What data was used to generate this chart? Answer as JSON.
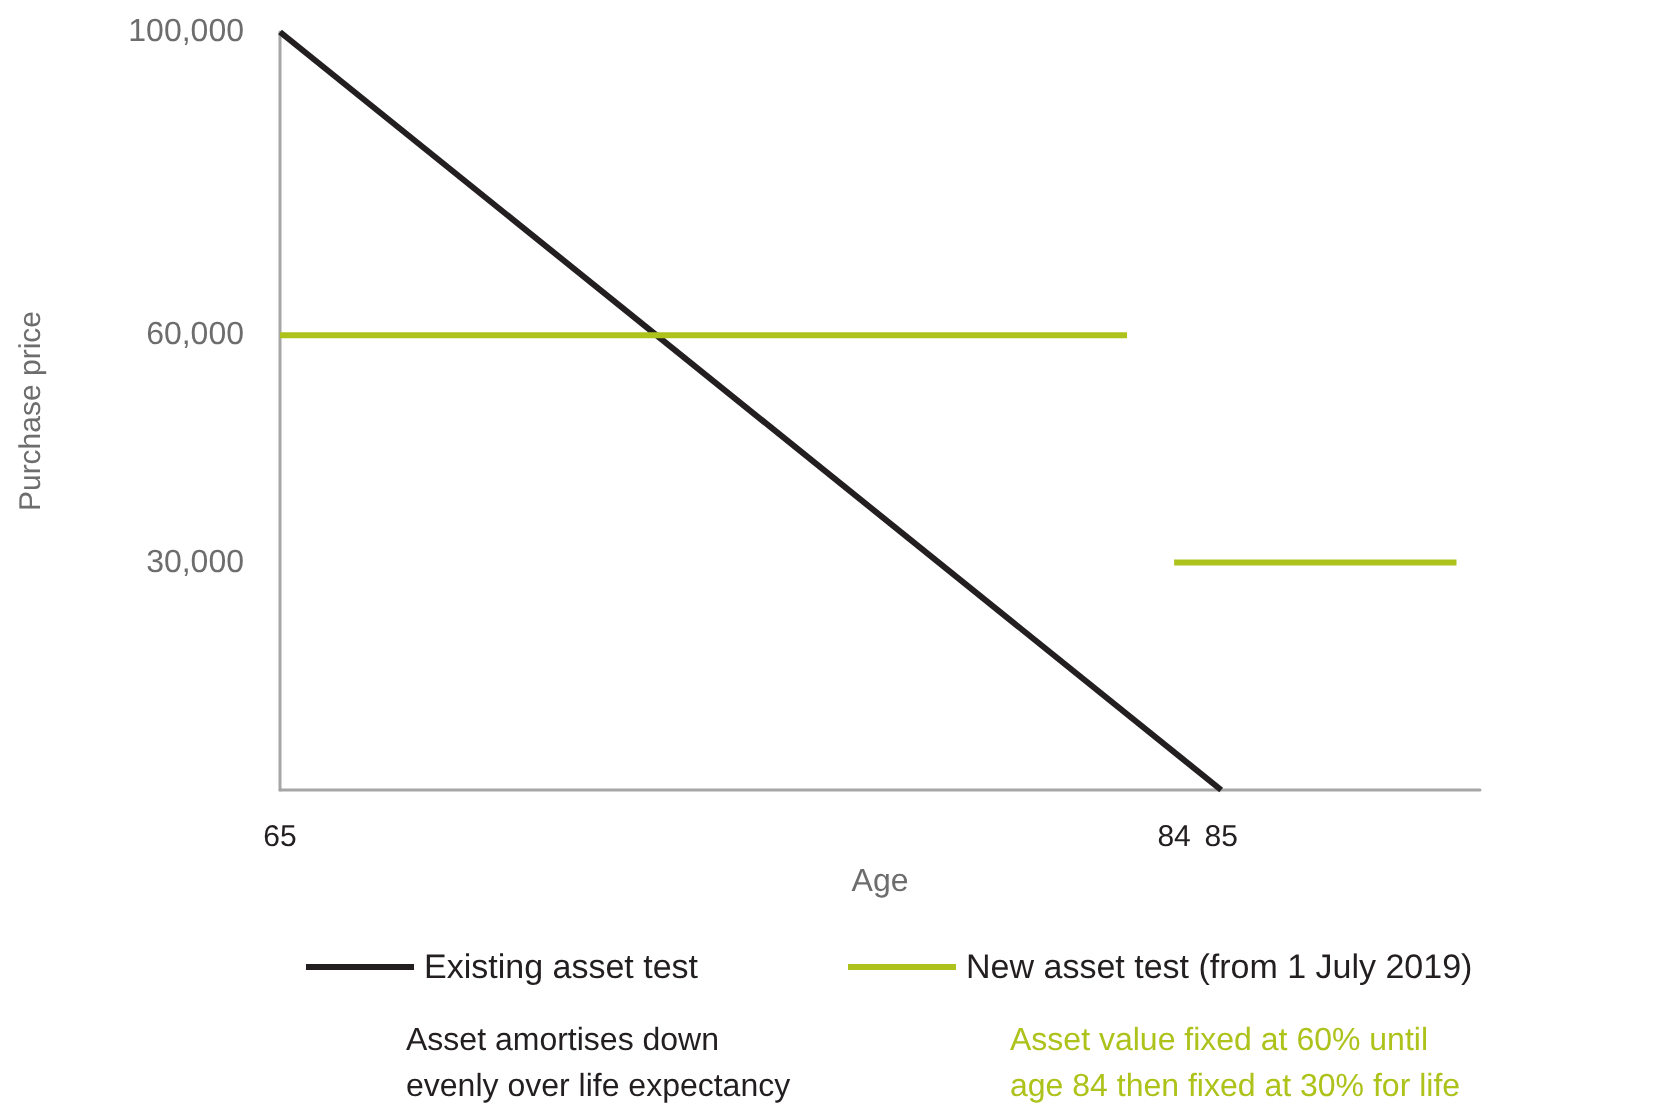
{
  "chart_data": {
    "type": "line",
    "xlabel": "Age",
    "ylabel": "Purchase price",
    "xlim": [
      65,
      90.5
    ],
    "xticks": [
      65,
      84,
      85
    ],
    "ylim": [
      0,
      100000
    ],
    "yticks": [
      {
        "value": 30000,
        "label": "30,000"
      },
      {
        "value": 60000,
        "label": "60,000"
      },
      {
        "value": 100000,
        "label": "100,000"
      }
    ],
    "series": [
      {
        "name": "Existing asset test",
        "color": "#231f20",
        "x": [
          65,
          85
        ],
        "values": [
          100000,
          0
        ]
      },
      {
        "name": "New asset test (from 1 July 2019)",
        "color": "#aec21c",
        "x": [
          65,
          83,
          83.5,
          84,
          90
        ],
        "values": [
          60000,
          60000,
          null,
          30000,
          30000
        ]
      }
    ],
    "annotations": [
      "Asset amortises down\nevenly over life expectancy",
      "Asset value fixed at 60% until\nage 84 then fixed at 30% for life"
    ],
    "grid": false,
    "legend": "bottom",
    "marker": "none",
    "line_style": "solid"
  }
}
